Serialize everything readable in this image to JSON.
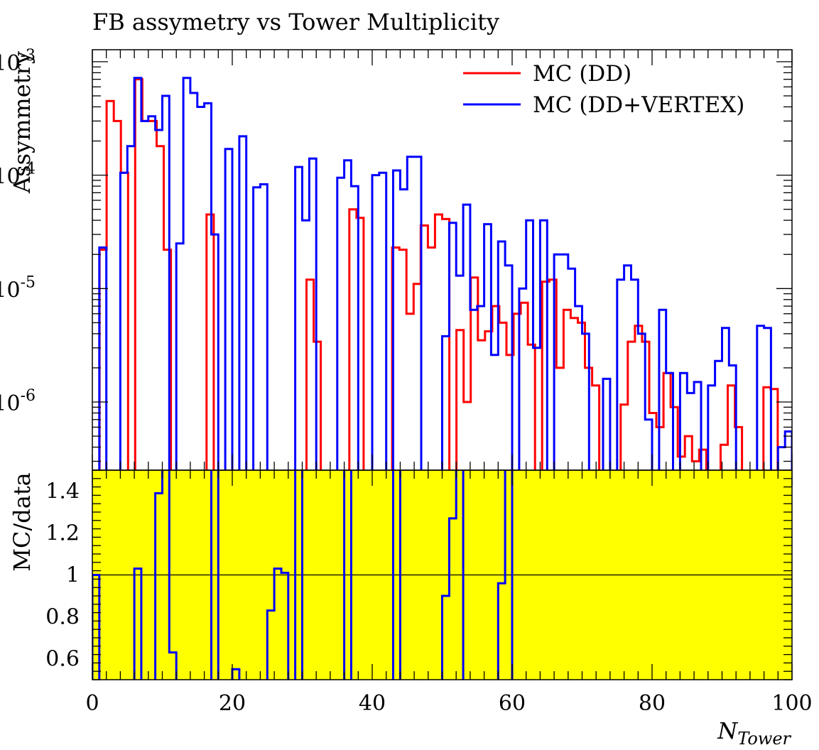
{
  "chart_data": [
    {
      "type": "line",
      "title": "FB assymetry vs Tower Multiplicity",
      "ylabel": "Assymmetry",
      "xlabel": "",
      "yscale": "log",
      "ylim": [
        3e-07,
        0.0012
      ],
      "xlim": [
        0,
        100
      ],
      "y_tick_labels": [
        "10^{-6}",
        "10^{-5}",
        "10^{-4}",
        "10^{-3}"
      ],
      "legend": "top-right",
      "grid": false,
      "series": [
        {
          "name": "MC (DD)",
          "color": "#ff0000",
          "values": [
            null,
            2.2e-05,
            0.00045,
            0.0003,
            0.000105,
            null,
            0.0007,
            0.0003,
            0.0003,
            0.00018,
            2.2e-05,
            null,
            null,
            null,
            null,
            null,
            4.5e-05,
            null,
            null,
            null,
            null,
            null,
            null,
            null,
            null,
            null,
            null,
            null,
            null,
            null,
            1.2e-05,
            3.4e-06,
            null,
            null,
            null,
            null,
            5e-05,
            4.2e-05,
            null,
            null,
            null,
            null,
            2.3e-05,
            2.2e-05,
            6e-06,
            1.1e-05,
            3.6e-05,
            2.3e-05,
            4.5e-05,
            4.1e-05,
            null,
            4.3e-06,
            1e-06,
            1.25e-05,
            3.5e-06,
            4.2e-06,
            7e-06,
            5e-06,
            2.6e-06,
            6e-06,
            7.5e-06,
            3.2e-06,
            null,
            1.15e-05,
            1.2e-05,
            2e-06,
            6.5e-06,
            5.5e-06,
            5e-06,
            2e-06,
            1.4e-06,
            null,
            null,
            null,
            9.5e-07,
            3.4e-06,
            4.7e-06,
            3.4e-06,
            8e-07,
            6e-07,
            1.8e-06,
            9e-07,
            3.3e-07,
            5e-07,
            3e-07,
            3.8e-07,
            null,
            null,
            4.2e-07,
            1.4e-06,
            6e-07,
            null,
            null,
            null,
            1.35e-06,
            1.3e-06,
            null,
            null
          ]
        },
        {
          "name": "MC (DD+VERTEX)",
          "color": "#0000ff",
          "values": [
            null,
            2.3e-05,
            null,
            null,
            0.000105,
            0.00018,
            0.00072,
            0.0003,
            0.00033,
            0.00025,
            0.0005,
            null,
            2.5e-05,
            0.00072,
            0.00053,
            0.0004,
            0.00043,
            3e-05,
            null,
            0.00017,
            null,
            0.00022,
            null,
            7.8e-05,
            8.3e-05,
            null,
            null,
            null,
            null,
            0.000118,
            4e-05,
            0.00014,
            null,
            null,
            null,
            9.5e-05,
            0.000135,
            8e-05,
            null,
            null,
            0.0001,
            0.000105,
            null,
            0.00011,
            7.5e-05,
            0.000145,
            0.000145,
            null,
            null,
            null,
            3.8e-06,
            3.8e-05,
            1.3e-05,
            5.5e-05,
            6.5e-06,
            7e-06,
            3.7e-05,
            2.6e-06,
            2.6e-05,
            1.6e-05,
            null,
            1e-05,
            4e-05,
            3e-06,
            4e-05,
            null,
            2e-05,
            2e-05,
            1.5e-05,
            7e-06,
            4e-06,
            null,
            null,
            1.6e-06,
            null,
            1.2e-05,
            1.6e-05,
            1.2e-05,
            4e-06,
            7e-07,
            null,
            6.5e-06,
            1.8e-06,
            null,
            1.8e-06,
            1.2e-06,
            1.5e-06,
            null,
            1.4e-06,
            2.3e-06,
            4.5e-06,
            2.1e-06,
            null,
            null,
            null,
            4.7e-06,
            4.5e-06,
            null,
            4e-07,
            5.5e-07
          ]
        }
      ]
    },
    {
      "type": "line",
      "title": "",
      "ylabel": "MC/data",
      "xlabel": "N_{Tower}",
      "xlim": [
        0,
        100
      ],
      "ylim": [
        0.5,
        1.5
      ],
      "x_tick_labels": [
        "0",
        "20",
        "40",
        "60",
        "80",
        "100"
      ],
      "y_tick_labels": [
        "0.6",
        "0.8",
        "1",
        "1.2",
        "1.4"
      ],
      "band_color": "#ffff00",
      "reference_line": 1.0,
      "series": [
        {
          "name": "",
          "color": "#0000ff",
          "values": [
            1.0,
            0.4,
            null,
            null,
            null,
            null,
            1.03,
            0.4,
            null,
            1.39,
            1.6,
            0.63,
            0.4,
            null,
            null,
            null,
            0.4,
            1.6,
            null,
            null,
            0.55,
            0.4,
            null,
            null,
            null,
            0.83,
            1.03,
            1.01,
            0.4,
            1.6,
            null,
            null,
            null,
            null,
            null,
            0.4,
            1.6,
            0.4,
            null,
            null,
            null,
            null,
            0.4,
            1.6,
            0.4,
            null,
            null,
            null,
            null,
            null,
            0.9,
            1.27,
            1.6,
            null,
            null,
            null,
            null,
            null,
            0.96,
            1.6,
            null,
            null,
            null,
            null,
            null,
            null,
            null,
            null,
            null,
            null,
            null,
            null,
            null,
            null,
            null,
            null,
            null,
            null,
            null,
            null,
            null,
            null,
            null,
            null,
            null,
            null,
            null,
            null,
            null,
            null,
            null,
            null,
            null,
            null,
            null,
            null,
            null,
            null,
            null,
            null
          ]
        }
      ]
    }
  ]
}
